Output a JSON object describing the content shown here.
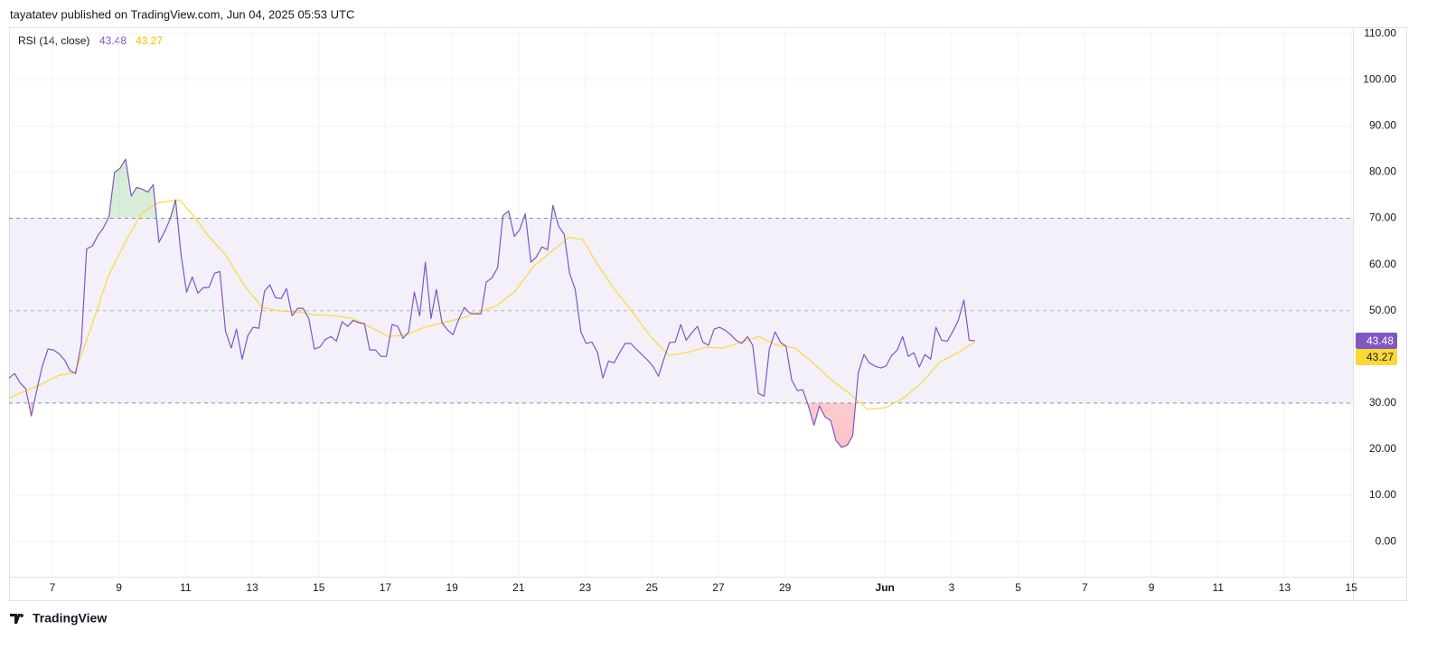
{
  "header": "tayatatev published on TradingView.com, Jun 04, 2025 05:53 UTC",
  "footer": "TradingView",
  "chart_data": {
    "type": "line",
    "legend_title": "RSI (14, close)",
    "xlim": [
      5.7,
      46.05
    ],
    "ylim": [
      -7.6,
      111.4
    ],
    "xticks": [
      7,
      9,
      11,
      13,
      15,
      17,
      19,
      21,
      23,
      25,
      27,
      29,
      {
        "value": 32,
        "label": "Jun"
      },
      {
        "value": 34,
        "label": "3"
      },
      {
        "value": 36,
        "label": "5"
      },
      {
        "value": 38,
        "label": "7"
      },
      {
        "value": 40,
        "label": "9"
      },
      {
        "value": 42,
        "label": "11"
      },
      {
        "value": 44,
        "label": "13"
      },
      {
        "value": 46,
        "label": "15"
      }
    ],
    "yticks": [
      {
        "value": 110,
        "label": "110.00"
      },
      {
        "value": 100,
        "label": "100.00"
      },
      {
        "value": 90,
        "label": "90.00"
      },
      {
        "value": 80,
        "label": "80.00"
      },
      {
        "value": 70,
        "label": "70.00"
      },
      {
        "value": 60,
        "label": "60.00"
      },
      {
        "value": 50,
        "label": "50.00"
      },
      {
        "value": 40,
        "label": "40.00"
      },
      {
        "value": 30,
        "label": "30.00"
      },
      {
        "value": 20,
        "label": "20.00"
      },
      {
        "value": 10,
        "label": "10.00"
      },
      {
        "value": 0,
        "label": "0.00"
      }
    ],
    "grid": true,
    "upper_band": 70,
    "middle_band": 50,
    "lower_band": 30,
    "band_color": "#7e57c2",
    "series": [
      {
        "color": "#7e57c2",
        "x": [
          5.7,
          5.87,
          6.03,
          6.2,
          6.37,
          6.53,
          6.7,
          6.87,
          7.03,
          7.2,
          7.37,
          7.53,
          7.7,
          7.87,
          8.03,
          8.2,
          8.37,
          8.53,
          8.7,
          8.87,
          9.03,
          9.2,
          9.37,
          9.53,
          9.7,
          9.87,
          10.03,
          10.2,
          10.37,
          10.53,
          10.7,
          10.87,
          11.03,
          11.2,
          11.37,
          11.53,
          11.7,
          11.87,
          12.03,
          12.2,
          12.37,
          12.53,
          12.7,
          12.87,
          13.03,
          13.2,
          13.37,
          13.53,
          13.7,
          13.87,
          14.03,
          14.2,
          14.37,
          14.53,
          14.7,
          14.87,
          15.03,
          15.2,
          15.37,
          15.53,
          15.7,
          15.87,
          16.03,
          16.2,
          16.37,
          16.53,
          16.7,
          16.87,
          17.03,
          17.2,
          17.37,
          17.53,
          17.7,
          17.87,
          18.03,
          18.2,
          18.37,
          18.53,
          18.7,
          18.87,
          19.03,
          19.2,
          19.37,
          19.53,
          19.7,
          19.87,
          20.03,
          20.2,
          20.37,
          20.53,
          20.7,
          20.87,
          21.03,
          21.2,
          21.37,
          21.53,
          21.7,
          21.87,
          22.03,
          22.2,
          22.37,
          22.53,
          22.7,
          22.87,
          23.03,
          23.2,
          23.37,
          23.53,
          23.7,
          23.87,
          24.03,
          24.2,
          24.37,
          24.53,
          24.7,
          24.87,
          25.03,
          25.2,
          25.37,
          25.53,
          25.7,
          25.87,
          26.03,
          26.2,
          26.37,
          26.53,
          26.7,
          26.87,
          27.03,
          27.2,
          27.37,
          27.53,
          27.7,
          27.87,
          28.03,
          28.2,
          28.37,
          28.53,
          28.7,
          28.87,
          29.03,
          29.2,
          29.37,
          29.53,
          29.7,
          29.87,
          30.03,
          30.2,
          30.37,
          30.53,
          30.7,
          30.87,
          31.03,
          31.2,
          31.37,
          31.53,
          31.7,
          31.87,
          32.03,
          32.2,
          32.37,
          32.53,
          32.7,
          32.87,
          33.03,
          33.2,
          33.37,
          33.53,
          33.7,
          33.87,
          34.03,
          34.2,
          34.37,
          34.53,
          34.7
        ],
        "values": [
          35.4,
          36.4,
          34.4,
          33.1,
          27.2,
          32.7,
          38.0,
          41.7,
          41.5,
          40.7,
          39.3,
          37.0,
          36.4,
          42.9,
          63.4,
          64.0,
          66.3,
          67.9,
          70.3,
          80.0,
          80.8,
          82.8,
          74.8,
          76.7,
          76.3,
          75.7,
          77.3,
          64.8,
          67.1,
          69.7,
          74.0,
          61.8,
          54.0,
          57.3,
          53.8,
          55.0,
          55.0,
          58.1,
          58.5,
          45.6,
          41.9,
          46.0,
          39.5,
          44.6,
          46.4,
          46.2,
          54.2,
          55.6,
          52.8,
          52.6,
          54.8,
          48.9,
          50.5,
          50.5,
          48.3,
          41.7,
          42.1,
          43.8,
          44.4,
          43.4,
          47.6,
          46.6,
          47.9,
          47.4,
          47.2,
          41.5,
          41.5,
          40.1,
          40.1,
          47.0,
          46.6,
          44.0,
          45.4,
          54.0,
          48.9,
          60.5,
          48.3,
          54.6,
          47.4,
          45.8,
          44.8,
          48.1,
          50.7,
          49.5,
          49.3,
          49.3,
          56.2,
          57.1,
          59.3,
          70.6,
          71.6,
          66.1,
          67.5,
          71.0,
          60.5,
          61.6,
          63.8,
          63.2,
          72.8,
          68.3,
          66.5,
          58.1,
          54.6,
          45.4,
          42.9,
          43.2,
          40.9,
          35.4,
          39.1,
          38.7,
          40.9,
          42.9,
          42.9,
          41.7,
          40.5,
          39.3,
          38.0,
          35.8,
          39.7,
          43.1,
          43.2,
          47.0,
          43.6,
          45.2,
          46.6,
          43.2,
          42.5,
          46.0,
          46.4,
          45.8,
          44.8,
          43.6,
          42.9,
          44.4,
          42.5,
          32.1,
          31.5,
          41.7,
          45.4,
          43.1,
          42.3,
          35.0,
          32.7,
          32.9,
          29.4,
          25.2,
          29.4,
          27.0,
          26.2,
          21.9,
          20.4,
          20.9,
          22.9,
          36.6,
          40.5,
          38.7,
          38.0,
          37.6,
          38.0,
          40.3,
          41.5,
          44.4,
          40.1,
          40.9,
          37.8,
          40.5,
          39.5,
          46.4,
          43.6,
          43.4,
          45.4,
          47.9,
          52.3,
          43.6,
          43.48
        ]
      },
      {
        "color": "#fdd835",
        "x": [
          5.7,
          6.67,
          7.19,
          7.68,
          8.14,
          8.68,
          9.23,
          9.69,
          10.18,
          10.83,
          11.26,
          11.67,
          12.21,
          12.75,
          13.3,
          13.84,
          14.38,
          14.92,
          15.47,
          16.01,
          16.55,
          17.1,
          17.64,
          18.18,
          18.72,
          19.27,
          19.81,
          20.35,
          20.89,
          21.44,
          21.98,
          22.52,
          22.93,
          23.33,
          23.88,
          24.42,
          24.96,
          25.51,
          26.05,
          26.59,
          27.14,
          27.68,
          28.22,
          28.76,
          29.31,
          29.85,
          30.39,
          30.93,
          31.48,
          32.02,
          32.56,
          33.11,
          33.65,
          34.19,
          34.7
        ],
        "values": [
          31.1,
          34.1,
          36.0,
          36.6,
          45.8,
          57.5,
          65.4,
          71.2,
          73.4,
          74.0,
          70.3,
          66.3,
          62.0,
          55.6,
          50.7,
          49.9,
          49.7,
          49.1,
          48.9,
          48.3,
          46.4,
          44.4,
          44.8,
          46.4,
          47.4,
          48.3,
          49.7,
          51.1,
          54.2,
          59.5,
          62.8,
          65.9,
          65.4,
          60.5,
          54.6,
          49.7,
          44.4,
          40.3,
          40.9,
          42.1,
          41.9,
          43.2,
          44.4,
          42.5,
          41.9,
          38.6,
          35.0,
          32.1,
          28.6,
          29.0,
          31.1,
          34.4,
          38.9,
          40.9,
          43.27
        ]
      }
    ]
  }
}
